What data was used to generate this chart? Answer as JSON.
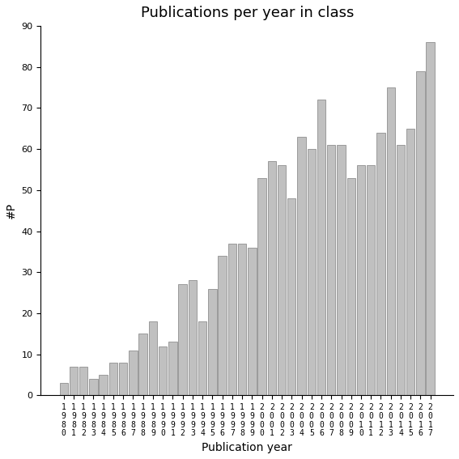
{
  "title": "Publications per year in class",
  "xlabel": "Publication year",
  "ylabel": "#P",
  "years": [
    1980,
    1981,
    1982,
    1983,
    1984,
    1985,
    1986,
    1987,
    1988,
    1989,
    1990,
    1991,
    1992,
    1993,
    1994,
    1995,
    1996,
    1997,
    1998,
    1999,
    2000,
    2001,
    2002,
    2003,
    2004,
    2005,
    2006,
    2007,
    2008,
    2009,
    2010,
    2011,
    2012,
    2013,
    2014,
    2015,
    2016,
    2017
  ],
  "values": [
    3,
    7,
    7,
    4,
    5,
    8,
    8,
    11,
    15,
    18,
    12,
    13,
    27,
    28,
    18,
    26,
    34,
    37,
    37,
    36,
    53,
    57,
    56,
    48,
    63,
    60,
    72,
    61,
    61,
    53,
    56,
    56,
    64,
    75,
    61,
    65,
    79,
    86
  ],
  "bar_color": "#c0c0c0",
  "bar_edge_color": "#808080",
  "ylim": [
    0,
    90
  ],
  "yticks": [
    0,
    10,
    20,
    30,
    40,
    50,
    60,
    70,
    80,
    90
  ],
  "bg_color": "#ffffff",
  "title_fontsize": 13,
  "label_fontsize": 10,
  "tick_fontsize": 8
}
